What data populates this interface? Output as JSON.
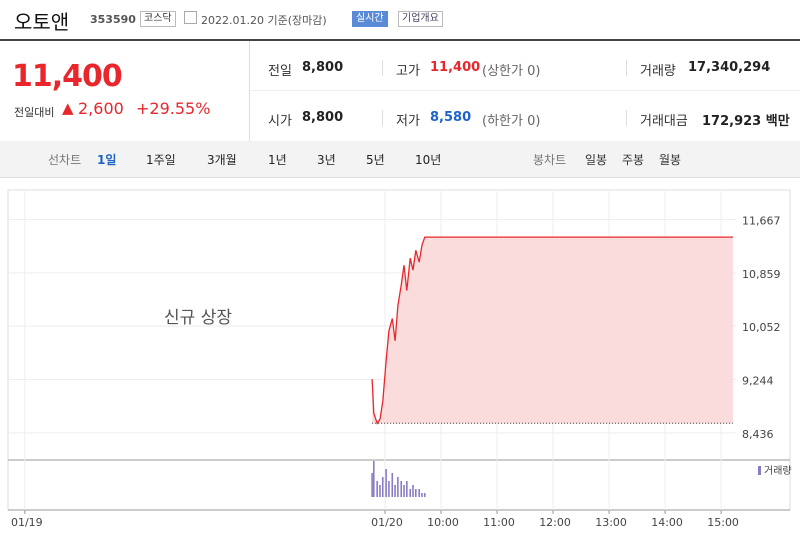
{
  "header": {
    "name": "오토앤",
    "code": "353590",
    "market": "코스닥",
    "date": "2022.01.20 기준(장마감)",
    "realtime": "실시간",
    "company_info": "기업개요"
  },
  "quote": {
    "price": "11,400",
    "change_label": "전일대비",
    "change": "2,600",
    "change_rate": "+29.55%"
  },
  "summary": {
    "rows": [
      [
        {
          "label": "전일",
          "value": "8,800"
        },
        {
          "label": "고가",
          "value": "11,400",
          "note": "(상한가 0)"
        },
        {
          "label": "거래량",
          "value": "17,340,294"
        }
      ],
      [
        {
          "label": "시가",
          "value": "8,800"
        },
        {
          "label": "저가",
          "value": "8,580",
          "note": "(하한가 0)"
        },
        {
          "label": "거래대금",
          "value": "172,923 백만"
        }
      ]
    ]
  },
  "tabs": {
    "line_chart": "선차트",
    "line_periods": [
      "1일",
      "1주일",
      "3개월",
      "1년",
      "3년",
      "5년",
      "10년"
    ],
    "candle_chart": "봉차트",
    "candle_periods": [
      "일봉",
      "주봉",
      "월봉"
    ]
  },
  "chart_data": {
    "type": "line",
    "annotation": "신규 상장",
    "x": [
      8.77,
      8.8,
      8.86,
      8.91,
      8.96,
      9.02,
      9.07,
      9.13,
      9.18,
      9.23,
      9.29,
      9.34,
      9.39,
      9.45,
      9.5,
      9.55,
      9.61,
      9.66,
      9.71,
      15.21
    ],
    "series": [
      {
        "color": "#e8262b",
        "values": [
          9250,
          8733,
          8580,
          8640,
          8915,
          9525,
          9980,
          10165,
          9830,
          10365,
          10670,
          10975,
          10590,
          11080,
          10900,
          11200,
          11020,
          11280,
          11400,
          11400
        ]
      },
      {
        "name": "거래량",
        "color": "#8a7cc4",
        "axis": "y2",
        "values": [
          6,
          9,
          4,
          3,
          5,
          7,
          4,
          6,
          3,
          5,
          4,
          3,
          4,
          2,
          3,
          2,
          2,
          1,
          1,
          0
        ]
      }
    ],
    "xlim": [
      2.27,
      16.23
    ],
    "xticks": [
      {
        "value": 2.57,
        "label": "01/19"
      },
      {
        "value": 9,
        "label": "01/20"
      },
      {
        "value": 10,
        "label": "10:00"
      },
      {
        "value": 11,
        "label": "11:00"
      },
      {
        "value": 12,
        "label": "12:00"
      },
      {
        "value": 13,
        "label": "13:00"
      },
      {
        "value": 14,
        "label": "14:00"
      },
      {
        "value": 15,
        "label": "15:00"
      }
    ],
    "ylim": [
      8100,
      11780
    ],
    "yticks": [
      {
        "value": 11667,
        "label": "11,667"
      },
      {
        "value": 10859,
        "label": "10,859"
      },
      {
        "value": 10052,
        "label": "10,052"
      },
      {
        "value": 9244,
        "label": "9,244"
      },
      {
        "value": 8436,
        "label": "8,436"
      }
    ],
    "y2lim": [
      0,
      10
    ],
    "grid": true,
    "fill": "#fbdcdc"
  }
}
